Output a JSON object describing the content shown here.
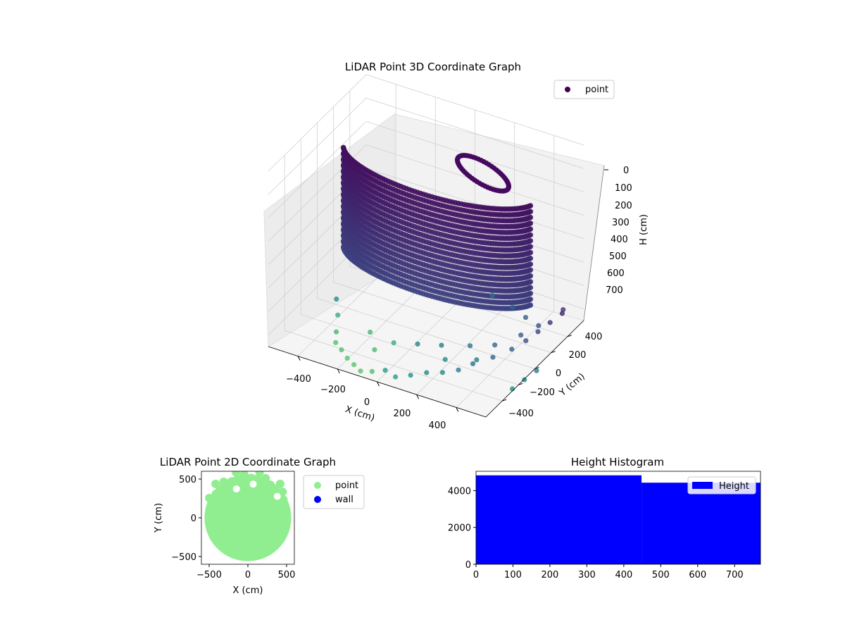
{
  "chart_data": [
    {
      "id": "3d",
      "type": "scatter",
      "title": "LiDAR Point 3D Coordinate Graph",
      "xlabel": "X (cm)",
      "ylabel": "Y (cm)",
      "zlabel": "H (cm)",
      "x_ticks": [
        "−400",
        "−200",
        "0",
        "200",
        "400"
      ],
      "y_ticks": [
        "−400",
        "−200",
        "0",
        "200",
        "400"
      ],
      "z_ticks": [
        "0",
        "100",
        "200",
        "300",
        "400",
        "500",
        "600",
        "700"
      ],
      "xlim": [
        -550,
        550
      ],
      "ylim": [
        -600,
        600
      ],
      "zlim": [
        0,
        750
      ],
      "z_inverted": true,
      "legend": [
        {
          "name": "point",
          "color": "#440154"
        }
      ],
      "legend_position": "top-right",
      "colormap": "viridis",
      "grid": true,
      "structures": {
        "front_wall_arc": {
          "radius": 480,
          "theta_range_deg": [
            195,
            350
          ],
          "h_range": [
            120,
            560
          ],
          "color": "#3b1f6e"
        },
        "back_ring": {
          "center": [
            140,
            360
          ],
          "radius": 120,
          "h_range": [
            40,
            260
          ],
          "color": "#46095f"
        }
      },
      "scatter_points": [
        {
          "x": -420,
          "y": -80,
          "h": 690
        },
        {
          "x": -380,
          "y": -160,
          "h": 720
        },
        {
          "x": -330,
          "y": -300,
          "h": 730
        },
        {
          "x": -300,
          "y": -380,
          "h": 740
        },
        {
          "x": -250,
          "y": -430,
          "h": 740
        },
        {
          "x": -200,
          "y": -480,
          "h": 745
        },
        {
          "x": -150,
          "y": -520,
          "h": 745
        },
        {
          "x": -100,
          "y": -560,
          "h": 745
        },
        {
          "x": -50,
          "y": -540,
          "h": 740
        },
        {
          "x": 0,
          "y": -500,
          "h": 735
        },
        {
          "x": 60,
          "y": -520,
          "h": 740
        },
        {
          "x": 120,
          "y": -480,
          "h": 730
        },
        {
          "x": 180,
          "y": -430,
          "h": 720
        },
        {
          "x": 240,
          "y": -380,
          "h": 720
        },
        {
          "x": 300,
          "y": -330,
          "h": 710
        },
        {
          "x": 340,
          "y": -250,
          "h": 700
        },
        {
          "x": 400,
          "y": -150,
          "h": 690
        },
        {
          "x": 450,
          "y": -40,
          "h": 680
        },
        {
          "x": 480,
          "y": 60,
          "h": 670
        },
        {
          "x": 500,
          "y": 160,
          "h": 660
        },
        {
          "x": 520,
          "y": 260,
          "h": 650
        },
        {
          "x": 540,
          "y": 360,
          "h": 640
        },
        {
          "x": 560,
          "y": -300,
          "h": 730
        },
        {
          "x": 580,
          "y": -200,
          "h": 720
        },
        {
          "x": 600,
          "y": -100,
          "h": 710
        },
        {
          "x": -60,
          "y": -250,
          "h": 720
        },
        {
          "x": 40,
          "y": -200,
          "h": 715
        },
        {
          "x": 140,
          "y": -150,
          "h": 710
        },
        {
          "x": 260,
          "y": -90,
          "h": 700
        },
        {
          "x": 360,
          "y": -30,
          "h": 690
        },
        {
          "x": 430,
          "y": 120,
          "h": 680
        },
        {
          "x": 470,
          "y": 240,
          "h": 670
        },
        {
          "x": 520,
          "y": 420,
          "h": 650
        },
        {
          "x": -200,
          "y": -200,
          "h": 730
        },
        {
          "x": -120,
          "y": -340,
          "h": 735
        },
        {
          "x": 200,
          "y": -250,
          "h": 720
        },
        {
          "x": 330,
          "y": -180,
          "h": 710
        },
        {
          "x": 380,
          "y": 300,
          "h": 680
        },
        {
          "x": 280,
          "y": 380,
          "h": 690
        },
        {
          "x": 150,
          "y": 450,
          "h": 700
        }
      ]
    },
    {
      "id": "2d",
      "type": "scatter",
      "title": "LiDAR Point 2D Coordinate Graph",
      "xlabel": "X (cm)",
      "ylabel": "Y (cm)",
      "x_ticks": [
        "−500",
        "0",
        "500"
      ],
      "y_ticks": [
        "−500",
        "0",
        "500"
      ],
      "xlim": [
        -600,
        600
      ],
      "ylim": [
        -600,
        600
      ],
      "disc_radius": 560,
      "legend": [
        {
          "name": "point",
          "color": "#90ee90"
        },
        {
          "name": "wall",
          "color": "#0000ff"
        }
      ],
      "legend_position": "outside-right"
    },
    {
      "id": "hist",
      "type": "bar",
      "title": "Height Histogram",
      "xlabel": "",
      "ylabel": "",
      "x_ticks": [
        "0",
        "100",
        "200",
        "300",
        "400",
        "500",
        "600",
        "700"
      ],
      "y_ticks": [
        "0",
        "2000",
        "4000"
      ],
      "xlim": [
        0,
        770
      ],
      "ylim": [
        0,
        5050
      ],
      "bins": [
        {
          "start": 0,
          "end": 448,
          "count": 4830
        },
        {
          "start": 448,
          "end": 770,
          "count": 4430
        }
      ],
      "color": "#0000ff",
      "legend": [
        {
          "name": "Height",
          "color": "#0000ff"
        }
      ],
      "legend_position": "top-right"
    }
  ]
}
